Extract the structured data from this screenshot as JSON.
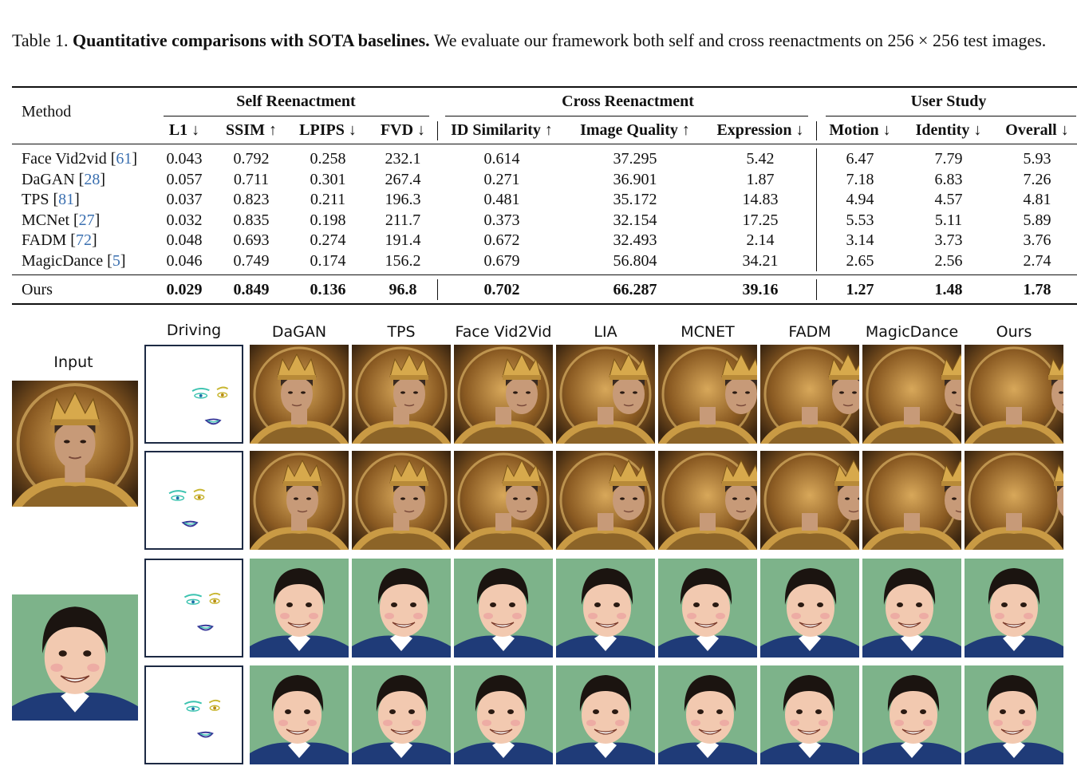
{
  "caption": {
    "label": "Table 1.",
    "bold": "Quantitative comparisons with SOTA baselines.",
    "text": "We evaluate our framework both self and cross reenactments on 256 × 256 test images."
  },
  "table": {
    "method_header": "Method",
    "groups": [
      "Self Reenactment",
      "Cross Reenactment",
      "User Study"
    ],
    "columns": [
      "L1 ↓",
      "SSIM ↑",
      "LPIPS ↓",
      "FVD ↓",
      "ID Similarity ↑",
      "Image Quality ↑",
      "Expression ↓",
      "Motion ↓",
      "Identity ↓",
      "Overall ↓"
    ],
    "rows": [
      {
        "name": "Face Vid2vid",
        "cite": "61",
        "values": [
          "0.043",
          "0.792",
          "0.258",
          "232.1",
          "0.614",
          "37.295",
          "5.42",
          "6.47",
          "7.79",
          "5.93"
        ]
      },
      {
        "name": "DaGAN",
        "cite": "28",
        "values": [
          "0.057",
          "0.711",
          "0.301",
          "267.4",
          "0.271",
          "36.901",
          "1.87",
          "7.18",
          "6.83",
          "7.26"
        ]
      },
      {
        "name": "TPS",
        "cite": "81",
        "values": [
          "0.037",
          "0.823",
          "0.211",
          "196.3",
          "0.481",
          "35.172",
          "14.83",
          "4.94",
          "4.57",
          "4.81"
        ]
      },
      {
        "name": "MCNet",
        "cite": "27",
        "values": [
          "0.032",
          "0.835",
          "0.198",
          "211.7",
          "0.373",
          "32.154",
          "17.25",
          "5.53",
          "5.11",
          "5.89"
        ]
      },
      {
        "name": "FADM",
        "cite": "72",
        "values": [
          "0.048",
          "0.693",
          "0.274",
          "191.4",
          "0.672",
          "32.493",
          "2.14",
          "3.14",
          "3.73",
          "3.76"
        ]
      },
      {
        "name": "MagicDance",
        "cite": "5",
        "values": [
          "0.046",
          "0.749",
          "0.174",
          "156.2",
          "0.679",
          "56.804",
          "34.21",
          "2.65",
          "2.56",
          "2.74"
        ]
      }
    ],
    "ours": {
      "name": "Ours",
      "values": [
        "0.029",
        "0.849",
        "0.136",
        "96.8",
        "0.702",
        "66.287",
        "39.16",
        "1.27",
        "1.48",
        "1.78"
      ]
    }
  },
  "figure": {
    "input_label": "Input",
    "driving_label": "Driving",
    "methods": [
      "DaGAN",
      "TPS",
      "Face Vid2Vid",
      "LIA",
      "MCNET",
      "FADM",
      "MagicDance",
      "Ours"
    ],
    "colors": {
      "king_bg": "#8a5a22",
      "king_gold": "#c99a44",
      "king_skin": "#c79a78",
      "king_hair": "#3a2a20",
      "cartoon_bg": "#7db38a",
      "cartoon_skin": "#f2c9b0",
      "cartoon_hair": "#1b1410",
      "cartoon_suit": "#1f3b78"
    }
  }
}
